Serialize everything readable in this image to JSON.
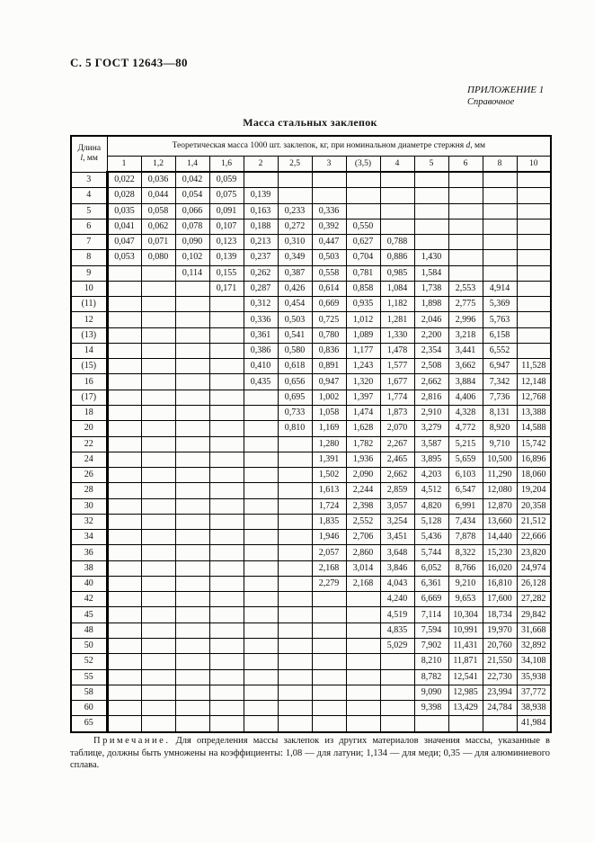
{
  "page": {
    "header": "С. 5 ГОСТ 12643—80",
    "appendix_line1": "ПРИЛОЖЕНИЕ 1",
    "appendix_line2": "Справочное",
    "title": "Масса стальных заклепок"
  },
  "table": {
    "length_header_word": "Длина",
    "length_header_symbol": "l",
    "length_header_units": ", мм",
    "span_header_prefix": "Теоретическая масса 1000 шт. заклепок, кг, при номинальном диаметре стержня ",
    "span_header_symbol": "d",
    "span_header_suffix": ", мм",
    "diameters": [
      "1",
      "1,2",
      "1,4",
      "1,6",
      "2",
      "2,5",
      "3",
      "(3,5)",
      "4",
      "5",
      "6",
      "8",
      "10"
    ],
    "rows": [
      {
        "length": "3",
        "values": [
          "0,022",
          "0,036",
          "0,042",
          "0,059",
          "",
          "",
          "",
          "",
          "",
          "",
          "",
          "",
          ""
        ]
      },
      {
        "length": "4",
        "values": [
          "0,028",
          "0,044",
          "0,054",
          "0,075",
          "0,139",
          "",
          "",
          "",
          "",
          "",
          "",
          "",
          ""
        ]
      },
      {
        "length": "5",
        "values": [
          "0,035",
          "0,058",
          "0,066",
          "0,091",
          "0,163",
          "0,233",
          "0,336",
          "",
          "",
          "",
          "",
          "",
          ""
        ]
      },
      {
        "length": "6",
        "values": [
          "0,041",
          "0,062",
          "0,078",
          "0,107",
          "0,188",
          "0,272",
          "0,392",
          "0,550",
          "",
          "",
          "",
          "",
          ""
        ]
      },
      {
        "length": "7",
        "values": [
          "0,047",
          "0,071",
          "0,090",
          "0,123",
          "0,213",
          "0,310",
          "0,447",
          "0,627",
          "0,788",
          "",
          "",
          "",
          ""
        ]
      },
      {
        "length": "8",
        "values": [
          "0,053",
          "0,080",
          "0,102",
          "0,139",
          "0,237",
          "0,349",
          "0,503",
          "0,704",
          "0,886",
          "1,430",
          "",
          "",
          ""
        ]
      },
      {
        "length": "9",
        "values": [
          "",
          "",
          "0,114",
          "0,155",
          "0,262",
          "0,387",
          "0,558",
          "0,781",
          "0,985",
          "1,584",
          "",
          "",
          ""
        ]
      },
      {
        "length": "10",
        "values": [
          "",
          "",
          "",
          "0,171",
          "0,287",
          "0,426",
          "0,614",
          "0,858",
          "1,084",
          "1,738",
          "2,553",
          "4,914",
          ""
        ]
      },
      {
        "length": "(11)",
        "values": [
          "",
          "",
          "",
          "",
          "0,312",
          "0,454",
          "0,669",
          "0,935",
          "1,182",
          "1,898",
          "2,775",
          "5,369",
          ""
        ]
      },
      {
        "length": "12",
        "values": [
          "",
          "",
          "",
          "",
          "0,336",
          "0,503",
          "0,725",
          "1,012",
          "1,281",
          "2,046",
          "2,996",
          "5,763",
          ""
        ]
      },
      {
        "length": "(13)",
        "values": [
          "",
          "",
          "",
          "",
          "0,361",
          "0,541",
          "0,780",
          "1,089",
          "1,330",
          "2,200",
          "3,218",
          "6,158",
          ""
        ]
      },
      {
        "length": "14",
        "values": [
          "",
          "",
          "",
          "",
          "0,386",
          "0,580",
          "0,836",
          "1,177",
          "1,478",
          "2,354",
          "3,441",
          "6,552",
          ""
        ]
      },
      {
        "length": "(15)",
        "values": [
          "",
          "",
          "",
          "",
          "0,410",
          "0,618",
          "0,891",
          "1,243",
          "1,577",
          "2,508",
          "3,662",
          "6,947",
          "11,528"
        ]
      },
      {
        "length": "16",
        "values": [
          "",
          "",
          "",
          "",
          "0,435",
          "0,656",
          "0,947",
          "1,320",
          "1,677",
          "2,662",
          "3,884",
          "7,342",
          "12,148"
        ]
      },
      {
        "length": "(17)",
        "values": [
          "",
          "",
          "",
          "",
          "",
          "0,695",
          "1,002",
          "1,397",
          "1,774",
          "2,816",
          "4,406",
          "7,736",
          "12,768"
        ]
      },
      {
        "length": "18",
        "values": [
          "",
          "",
          "",
          "",
          "",
          "0,733",
          "1,058",
          "1,474",
          "1,873",
          "2,910",
          "4,328",
          "8,131",
          "13,388"
        ]
      },
      {
        "length": "20",
        "values": [
          "",
          "",
          "",
          "",
          "",
          "0,810",
          "1,169",
          "1,628",
          "2,070",
          "3,279",
          "4,772",
          "8,920",
          "14,588"
        ]
      },
      {
        "length": "22",
        "values": [
          "",
          "",
          "",
          "",
          "",
          "",
          "1,280",
          "1,782",
          "2,267",
          "3,587",
          "5,215",
          "9,710",
          "15,742"
        ]
      },
      {
        "length": "24",
        "values": [
          "",
          "",
          "",
          "",
          "",
          "",
          "1,391",
          "1,936",
          "2,465",
          "3,895",
          "5,659",
          "10,500",
          "16,896"
        ]
      },
      {
        "length": "26",
        "values": [
          "",
          "",
          "",
          "",
          "",
          "",
          "1,502",
          "2,090",
          "2,662",
          "4,203",
          "6,103",
          "11,290",
          "18,060"
        ]
      },
      {
        "length": "28",
        "values": [
          "",
          "",
          "",
          "",
          "",
          "",
          "1,613",
          "2,244",
          "2,859",
          "4,512",
          "6,547",
          "12,080",
          "19,204"
        ]
      },
      {
        "length": "30",
        "values": [
          "",
          "",
          "",
          "",
          "",
          "",
          "1,724",
          "2,398",
          "3,057",
          "4,820",
          "6,991",
          "12,870",
          "20,358"
        ]
      },
      {
        "length": "32",
        "values": [
          "",
          "",
          "",
          "",
          "",
          "",
          "1,835",
          "2,552",
          "3,254",
          "5,128",
          "7,434",
          "13,660",
          "21,512"
        ]
      },
      {
        "length": "34",
        "values": [
          "",
          "",
          "",
          "",
          "",
          "",
          "1,946",
          "2,706",
          "3,451",
          "5,436",
          "7,878",
          "14,440",
          "22,666"
        ]
      },
      {
        "length": "36",
        "values": [
          "",
          "",
          "",
          "",
          "",
          "",
          "2,057",
          "2,860",
          "3,648",
          "5,744",
          "8,322",
          "15,230",
          "23,820"
        ]
      },
      {
        "length": "38",
        "values": [
          "",
          "",
          "",
          "",
          "",
          "",
          "2,168",
          "3,014",
          "3,846",
          "6,052",
          "8,766",
          "16,020",
          "24,974"
        ]
      },
      {
        "length": "40",
        "values": [
          "",
          "",
          "",
          "",
          "",
          "",
          "2,279",
          "2,168",
          "4,043",
          "6,361",
          "9,210",
          "16,810",
          "26,128"
        ]
      },
      {
        "length": "42",
        "values": [
          "",
          "",
          "",
          "",
          "",
          "",
          "",
          "",
          "4,240",
          "6,669",
          "9,653",
          "17,600",
          "27,282"
        ]
      },
      {
        "length": "45",
        "values": [
          "",
          "",
          "",
          "",
          "",
          "",
          "",
          "",
          "4,519",
          "7,114",
          "10,304",
          "18,734",
          "29,842"
        ]
      },
      {
        "length": "48",
        "values": [
          "",
          "",
          "",
          "",
          "",
          "",
          "",
          "",
          "4,835",
          "7,594",
          "10,991",
          "19,970",
          "31,668"
        ]
      },
      {
        "length": "50",
        "values": [
          "",
          "",
          "",
          "",
          "",
          "",
          "",
          "",
          "5,029",
          "7,902",
          "11,431",
          "20,760",
          "32,892"
        ]
      },
      {
        "length": "52",
        "values": [
          "",
          "",
          "",
          "",
          "",
          "",
          "",
          "",
          "",
          "8,210",
          "11,871",
          "21,550",
          "34,108"
        ]
      },
      {
        "length": "55",
        "values": [
          "",
          "",
          "",
          "",
          "",
          "",
          "",
          "",
          "",
          "8,782",
          "12,541",
          "22,730",
          "35,938"
        ]
      },
      {
        "length": "58",
        "values": [
          "",
          "",
          "",
          "",
          "",
          "",
          "",
          "",
          "",
          "9,090",
          "12,985",
          "23,994",
          "37,772"
        ]
      },
      {
        "length": "60",
        "values": [
          "",
          "",
          "",
          "",
          "",
          "",
          "",
          "",
          "",
          "9,398",
          "13,429",
          "24,784",
          "38,938"
        ]
      },
      {
        "length": "65",
        "values": [
          "",
          "",
          "",
          "",
          "",
          "",
          "",
          "",
          "",
          "",
          "",
          "",
          "41,984"
        ]
      }
    ]
  },
  "note": {
    "label": "Примечание.",
    "text": " Для определения массы заклепок из других материалов значения массы, указанные в таблице, должны быть умножены на коэффициенты: 1,08 — для латуни; 1,134 — для меди; 0,35 — для алюминиевого сплава."
  }
}
